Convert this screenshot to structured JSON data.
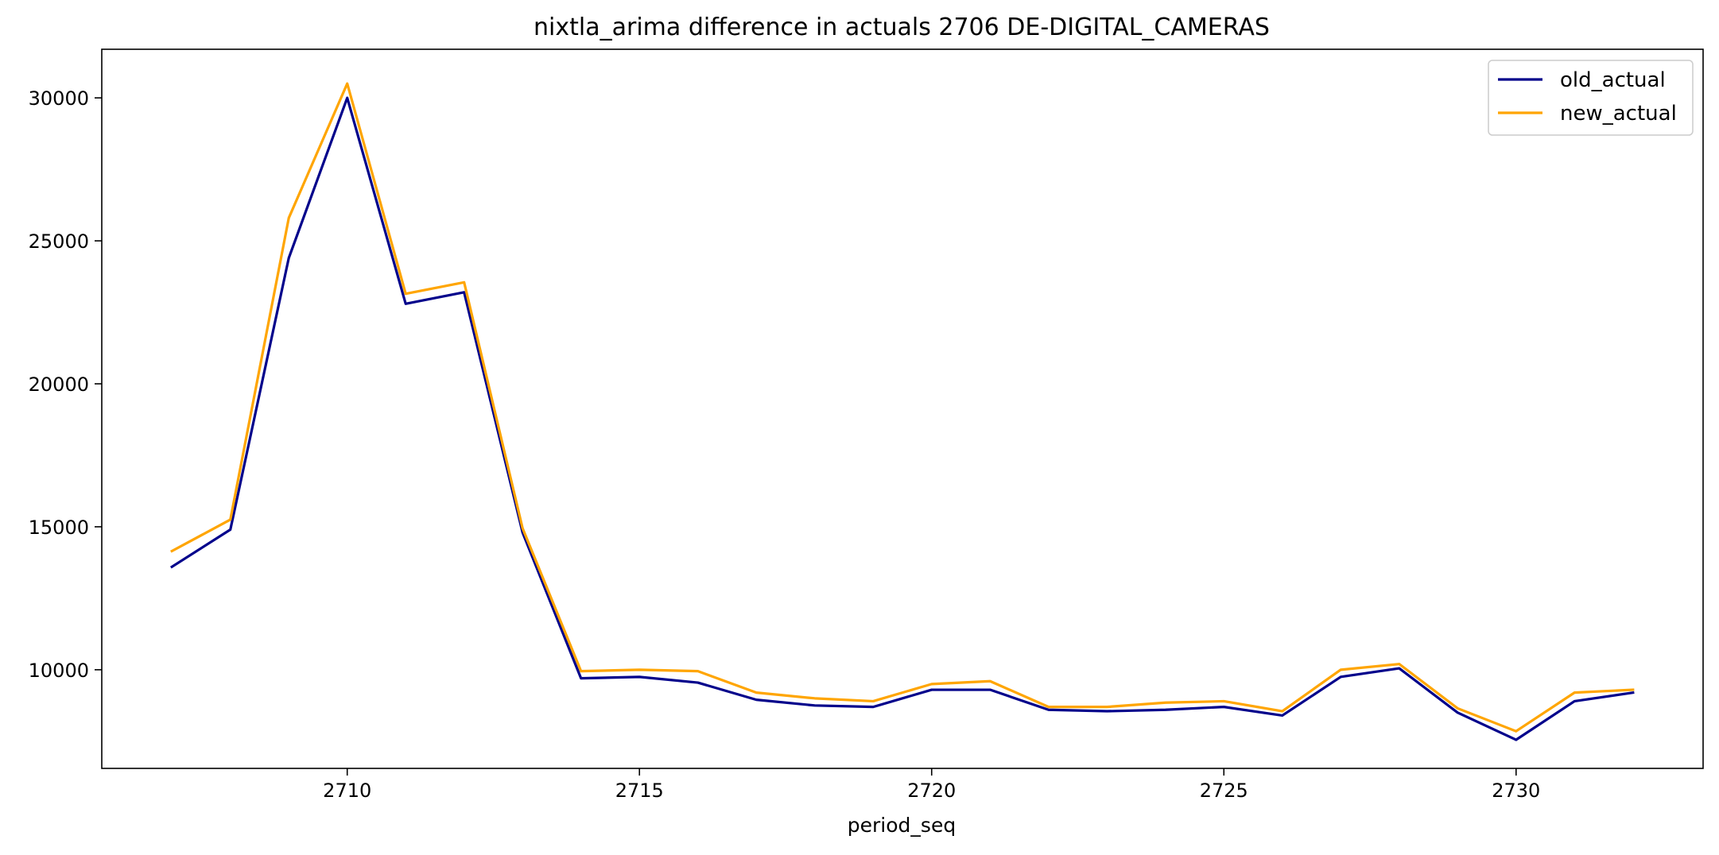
{
  "chart_data": {
    "type": "line",
    "title": "nixtla_arima difference in actuals 2706 DE-DIGITAL_CAMERAS",
    "xlabel": "period_seq",
    "ylabel": "",
    "x": [
      2707,
      2708,
      2709,
      2710,
      2711,
      2712,
      2713,
      2714,
      2715,
      2716,
      2717,
      2718,
      2719,
      2720,
      2721,
      2722,
      2723,
      2724,
      2725,
      2726,
      2727,
      2728,
      2729,
      2730,
      2731,
      2732
    ],
    "xlim": [
      2705.8,
      2733.2
    ],
    "ylim": [
      6550,
      31700
    ],
    "xticks": [
      2710,
      2715,
      2720,
      2725,
      2730
    ],
    "yticks": [
      10000,
      15000,
      20000,
      25000,
      30000
    ],
    "grid": false,
    "legend_position": "top-right",
    "series": [
      {
        "name": "old_actual",
        "color": "#00008b",
        "values": [
          13600,
          14900,
          24400,
          30000,
          22800,
          23200,
          14800,
          9700,
          9750,
          9550,
          8950,
          8750,
          8700,
          9300,
          9300,
          8600,
          8550,
          8600,
          8700,
          8400,
          9750,
          10050,
          8500,
          7550,
          8900,
          9200
        ]
      },
      {
        "name": "new_actual",
        "color": "#ffa500",
        "values": [
          14150,
          15250,
          25800,
          30500,
          23150,
          23550,
          14950,
          9950,
          10000,
          9950,
          9200,
          9000,
          8900,
          9500,
          9600,
          8700,
          8700,
          8850,
          8900,
          8550,
          10000,
          10200,
          8650,
          7850,
          9200,
          9300
        ]
      }
    ]
  }
}
